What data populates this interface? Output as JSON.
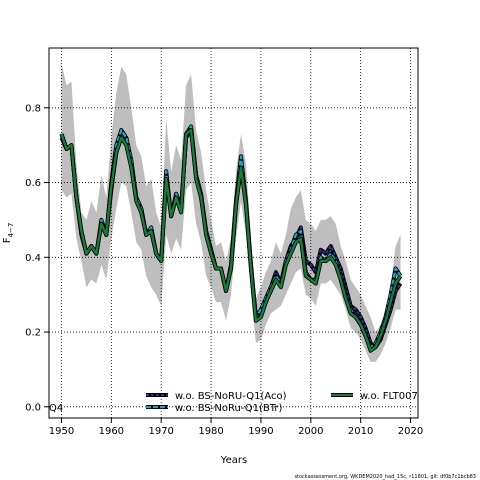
{
  "chart_data": {
    "type": "line",
    "xlabel": "Years",
    "ylabel": "F4-7",
    "ylabel_main": "F",
    "ylabel_sub": "4−7",
    "xlim": [
      1947.5,
      2021.5
    ],
    "ylim": [
      -0.03,
      0.96
    ],
    "xticks": [
      "1950",
      "1960",
      "1970",
      "1980",
      "1990",
      "2000",
      "2010",
      "2020"
    ],
    "yticks": [
      "0.0",
      "0.2",
      "0.4",
      "0.6",
      "0.8"
    ],
    "grid": true,
    "legend_placement": "bottom-center",
    "corner_label": "Q4",
    "footer_note": "stockassessment.org, WKDEM2020_had_15c, r11801, git: df0b7c1bcb83",
    "band_color": "#bebebe",
    "band": {
      "x": [
        1950,
        1951,
        1952,
        1953,
        1954,
        1955,
        1956,
        1957,
        1958,
        1959,
        1960,
        1961,
        1962,
        1963,
        1964,
        1965,
        1966,
        1967,
        1968,
        1969,
        1970,
        1971,
        1972,
        1973,
        1974,
        1975,
        1976,
        1977,
        1978,
        1979,
        1980,
        1981,
        1982,
        1983,
        1984,
        1985,
        1986,
        1987,
        1988,
        1989,
        1990,
        1991,
        1992,
        1993,
        1994,
        1995,
        1996,
        1997,
        1998,
        1999,
        2000,
        2001,
        2002,
        2003,
        2004,
        2005,
        2006,
        2007,
        2008,
        2009,
        2010,
        2011,
        2012,
        2013,
        2014,
        2015,
        2016,
        2017,
        2018
      ],
      "lower": [
        0.58,
        0.56,
        0.57,
        0.45,
        0.39,
        0.32,
        0.34,
        0.33,
        0.38,
        0.34,
        0.45,
        0.53,
        0.6,
        0.59,
        0.52,
        0.44,
        0.42,
        0.35,
        0.32,
        0.3,
        0.27,
        0.46,
        0.41,
        0.45,
        0.42,
        0.58,
        0.6,
        0.49,
        0.44,
        0.35,
        0.32,
        0.28,
        0.28,
        0.23,
        0.3,
        0.45,
        0.55,
        0.46,
        0.3,
        0.17,
        0.18,
        0.22,
        0.25,
        0.26,
        0.27,
        0.3,
        0.33,
        0.36,
        0.37,
        0.3,
        0.29,
        0.27,
        0.33,
        0.33,
        0.34,
        0.32,
        0.3,
        0.26,
        0.21,
        0.2,
        0.18,
        0.15,
        0.12,
        0.12,
        0.14,
        0.17,
        0.21,
        0.26,
        0.26
      ],
      "upper": [
        0.92,
        0.86,
        0.87,
        0.65,
        0.52,
        0.5,
        0.55,
        0.52,
        0.62,
        0.56,
        0.72,
        0.84,
        0.91,
        0.89,
        0.8,
        0.7,
        0.67,
        0.59,
        0.61,
        0.52,
        0.48,
        0.77,
        0.63,
        0.7,
        0.66,
        0.86,
        0.89,
        0.74,
        0.68,
        0.58,
        0.5,
        0.43,
        0.44,
        0.39,
        0.45,
        0.63,
        0.73,
        0.65,
        0.45,
        0.29,
        0.32,
        0.36,
        0.39,
        0.44,
        0.41,
        0.46,
        0.53,
        0.56,
        0.58,
        0.5,
        0.49,
        0.47,
        0.5,
        0.5,
        0.51,
        0.49,
        0.43,
        0.39,
        0.34,
        0.32,
        0.3,
        0.27,
        0.24,
        0.2,
        0.22,
        0.26,
        0.32,
        0.43,
        0.46
      ]
    },
    "series": [
      {
        "name": "w.o. BS-NoRU-Q1(Aco)",
        "color": "#2b2f8f",
        "dash": "3,2",
        "values": [
          0.72,
          0.69,
          0.7,
          0.56,
          0.46,
          0.41,
          0.43,
          0.41,
          0.49,
          0.46,
          0.58,
          0.68,
          0.74,
          0.72,
          0.65,
          0.56,
          0.53,
          0.46,
          0.47,
          0.41,
          0.39,
          0.62,
          0.51,
          0.57,
          0.53,
          0.72,
          0.74,
          0.62,
          0.56,
          0.47,
          0.42,
          0.37,
          0.37,
          0.31,
          0.37,
          0.54,
          0.65,
          0.54,
          0.37,
          0.24,
          0.25,
          0.29,
          0.32,
          0.36,
          0.33,
          0.39,
          0.43,
          0.45,
          0.48,
          0.39,
          0.38,
          0.36,
          0.42,
          0.41,
          0.43,
          0.4,
          0.37,
          0.32,
          0.27,
          0.26,
          0.24,
          0.21,
          0.17,
          0.16,
          0.18,
          0.22,
          0.26,
          0.31,
          0.33
        ]
      },
      {
        "name": "w.o. BS-NoRu-Q1(BTr)",
        "color": "#1fa5c4",
        "dash": "5,2",
        "values": [
          0.73,
          0.69,
          0.7,
          0.56,
          0.47,
          0.41,
          0.43,
          0.41,
          0.5,
          0.46,
          0.6,
          0.7,
          0.74,
          0.72,
          0.66,
          0.56,
          0.53,
          0.46,
          0.48,
          0.41,
          0.39,
          0.63,
          0.51,
          0.57,
          0.53,
          0.73,
          0.75,
          0.62,
          0.57,
          0.47,
          0.42,
          0.37,
          0.37,
          0.31,
          0.38,
          0.55,
          0.67,
          0.55,
          0.38,
          0.24,
          0.26,
          0.29,
          0.32,
          0.35,
          0.33,
          0.39,
          0.42,
          0.46,
          0.47,
          0.36,
          0.34,
          0.34,
          0.4,
          0.39,
          0.41,
          0.39,
          0.35,
          0.3,
          0.26,
          0.24,
          0.22,
          0.19,
          0.16,
          0.17,
          0.2,
          0.24,
          0.3,
          0.37,
          0.35
        ]
      },
      {
        "name": "w.o. FLT007",
        "color": "#1b7a3c",
        "dash": "",
        "values": [
          0.73,
          0.69,
          0.7,
          0.56,
          0.47,
          0.41,
          0.43,
          0.41,
          0.49,
          0.46,
          0.59,
          0.68,
          0.72,
          0.7,
          0.64,
          0.55,
          0.52,
          0.46,
          0.47,
          0.41,
          0.39,
          0.61,
          0.51,
          0.56,
          0.52,
          0.73,
          0.74,
          0.61,
          0.56,
          0.46,
          0.41,
          0.37,
          0.37,
          0.31,
          0.37,
          0.54,
          0.64,
          0.54,
          0.37,
          0.23,
          0.24,
          0.28,
          0.31,
          0.34,
          0.32,
          0.38,
          0.41,
          0.44,
          0.45,
          0.35,
          0.34,
          0.33,
          0.39,
          0.39,
          0.4,
          0.38,
          0.34,
          0.29,
          0.25,
          0.24,
          0.22,
          0.19,
          0.15,
          0.16,
          0.19,
          0.23,
          0.28,
          0.33,
          0.35
        ]
      }
    ]
  }
}
